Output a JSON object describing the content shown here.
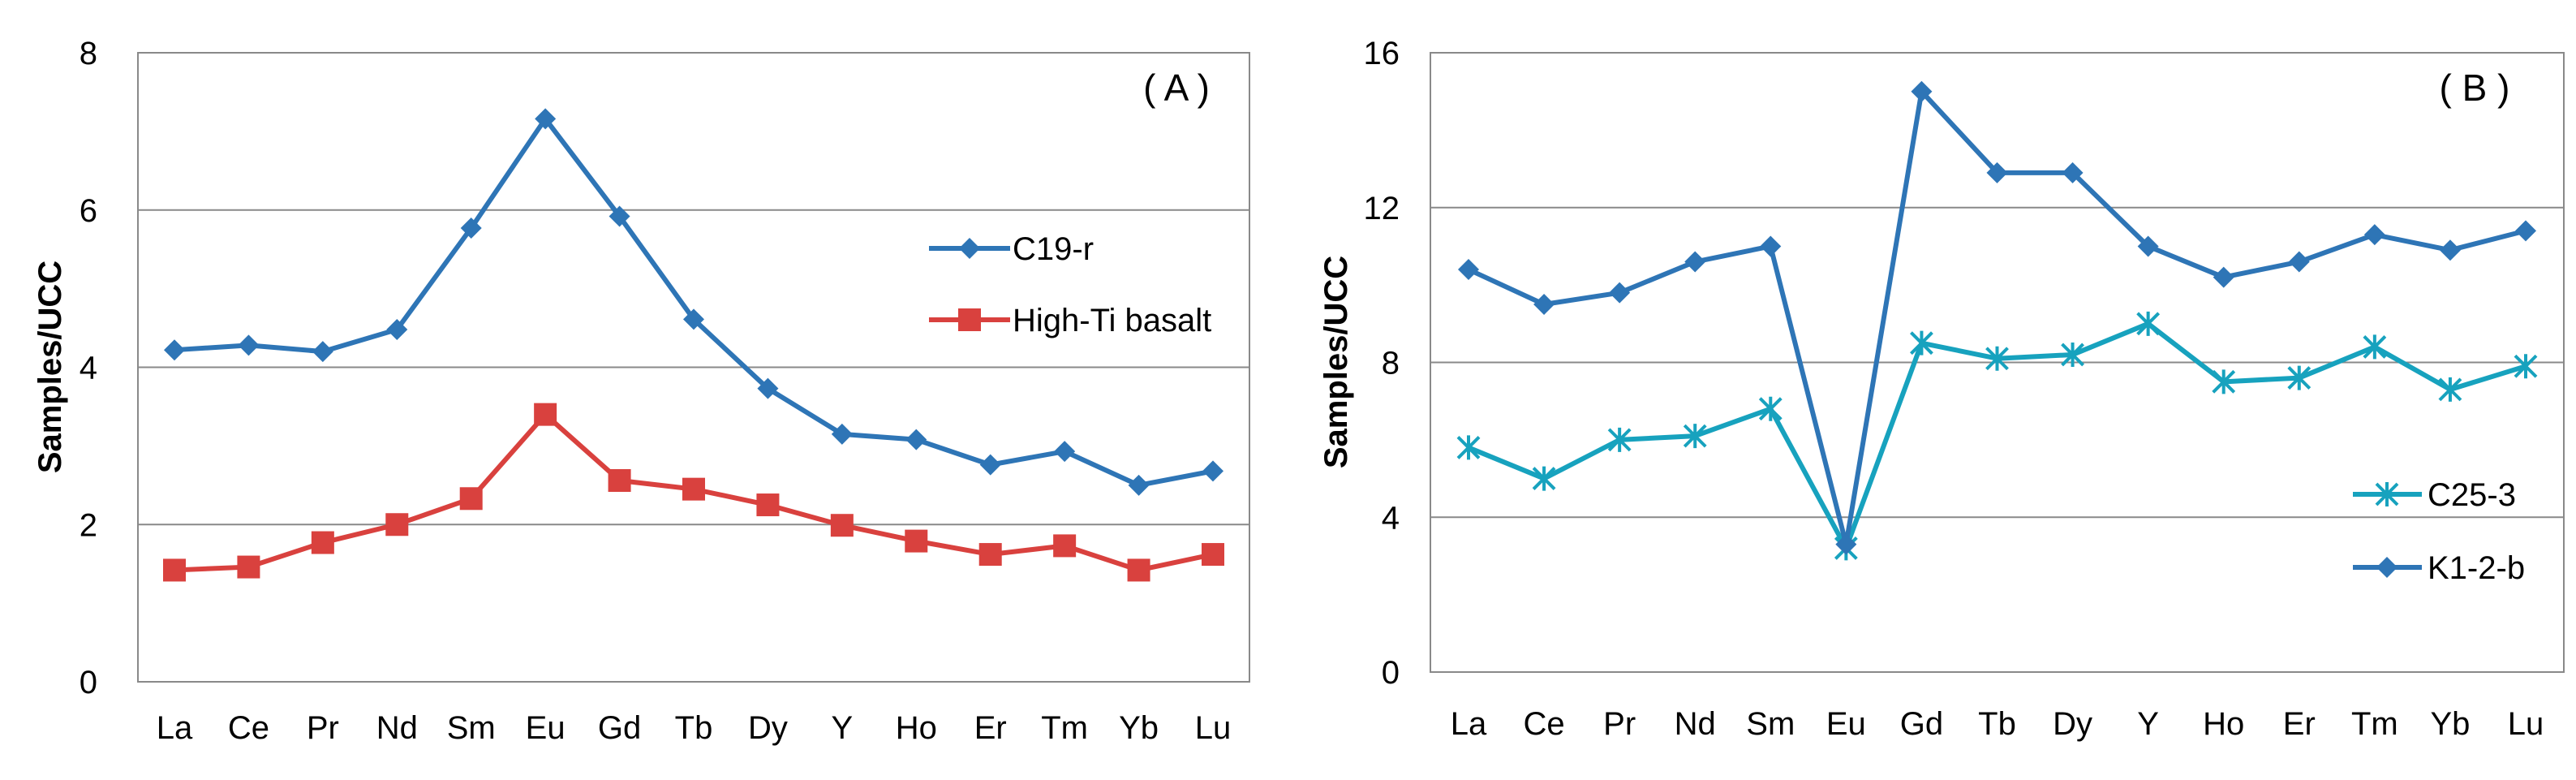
{
  "chart_data": [
    {
      "type": "line",
      "panel_label": "( A )",
      "ylabel": "Samples/UCC",
      "xlabel": "",
      "categories": [
        "La",
        "Ce",
        "Pr",
        "Nd",
        "Sm",
        "Eu",
        "Gd",
        "Tb",
        "Dy",
        "Y",
        "Ho",
        "Er",
        "Tm",
        "Yb",
        "Lu"
      ],
      "ylim": [
        0,
        8
      ],
      "yticks": [
        "0",
        "2",
        "4",
        "6",
        "8"
      ],
      "grid": true,
      "legend_position": "right",
      "series": [
        {
          "name": "C19-r",
          "marker": "diamond",
          "color": "#2E75B6",
          "values": [
            4.22,
            4.28,
            4.2,
            4.48,
            5.77,
            7.16,
            5.92,
            4.61,
            3.73,
            3.15,
            3.08,
            2.76,
            2.93,
            2.5,
            2.68
          ]
        },
        {
          "name": "High-Ti basalt",
          "marker": "square",
          "color": "#D9413E",
          "values": [
            1.42,
            1.46,
            1.77,
            2.0,
            2.33,
            3.4,
            2.56,
            2.45,
            2.25,
            1.99,
            1.79,
            1.62,
            1.73,
            1.42,
            1.62
          ]
        }
      ]
    },
    {
      "type": "line",
      "panel_label": "( B )",
      "ylabel": "Samples/UCC",
      "xlabel": "",
      "categories": [
        "La",
        "Ce",
        "Pr",
        "Nd",
        "Sm",
        "Eu",
        "Gd",
        "Tb",
        "Dy",
        "Y",
        "Ho",
        "Er",
        "Tm",
        "Yb",
        "Lu"
      ],
      "ylim": [
        0,
        16
      ],
      "yticks": [
        "0",
        "4",
        "8",
        "12",
        "16"
      ],
      "grid": true,
      "legend_position": "bottom-right",
      "series": [
        {
          "name": "C25-3",
          "marker": "asterisk",
          "color": "#17A2BE",
          "values": [
            5.8,
            5.0,
            6.0,
            6.1,
            6.8,
            3.2,
            8.5,
            8.1,
            8.2,
            9.0,
            7.5,
            7.6,
            8.4,
            7.3,
            7.9
          ]
        },
        {
          "name": "K1-2-b",
          "marker": "diamond",
          "color": "#2E75B6",
          "values": [
            10.4,
            9.5,
            9.8,
            10.6,
            11.0,
            3.3,
            15.0,
            12.9,
            12.9,
            11.0,
            10.2,
            10.6,
            11.3,
            10.9,
            11.4
          ]
        }
      ]
    }
  ]
}
